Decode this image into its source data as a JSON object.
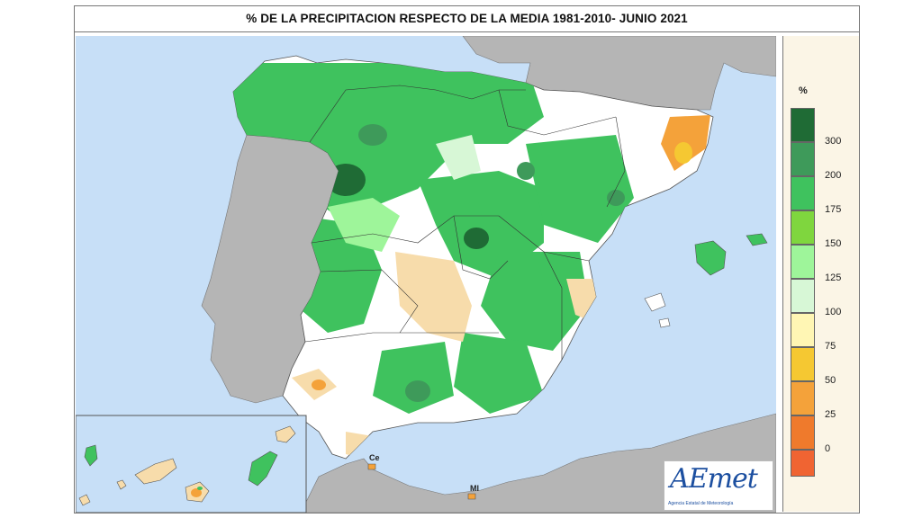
{
  "title": "% DE LA PRECIPITACION RESPECTO DE LA MEDIA 1981-2010- JUNIO 2021",
  "legend": {
    "unit": "%",
    "classes": [
      {
        "label": "300",
        "color": "#1f6b35"
      },
      {
        "label": "200",
        "color": "#3e9a5a"
      },
      {
        "label": "175",
        "color": "#3fc25e"
      },
      {
        "label": "150",
        "color": "#7fd63e"
      },
      {
        "label": "125",
        "color": "#9ef59a"
      },
      {
        "label": "100",
        "color": "#d7f7d6"
      },
      {
        "label": "75",
        "color": "#fff6b4"
      },
      {
        "label": "50",
        "color": "#f5c832"
      },
      {
        "label": "25",
        "color": "#f4a23a"
      },
      {
        "label": "0",
        "color": "#ef7a2c"
      },
      {
        "label": "",
        "color": "#f06432"
      }
    ]
  },
  "cities": [
    {
      "code": "Ce"
    },
    {
      "code": "Ml"
    }
  ],
  "logo": {
    "text": "AEmet",
    "subtitle": "Agencia Estatal de Meteorología"
  },
  "colors": {
    "sea": "#c7dff7",
    "land_other": "#b5b5b5",
    "neutral": "#ffffff",
    "above": "#3fc25e",
    "below": "#f7dcab"
  }
}
